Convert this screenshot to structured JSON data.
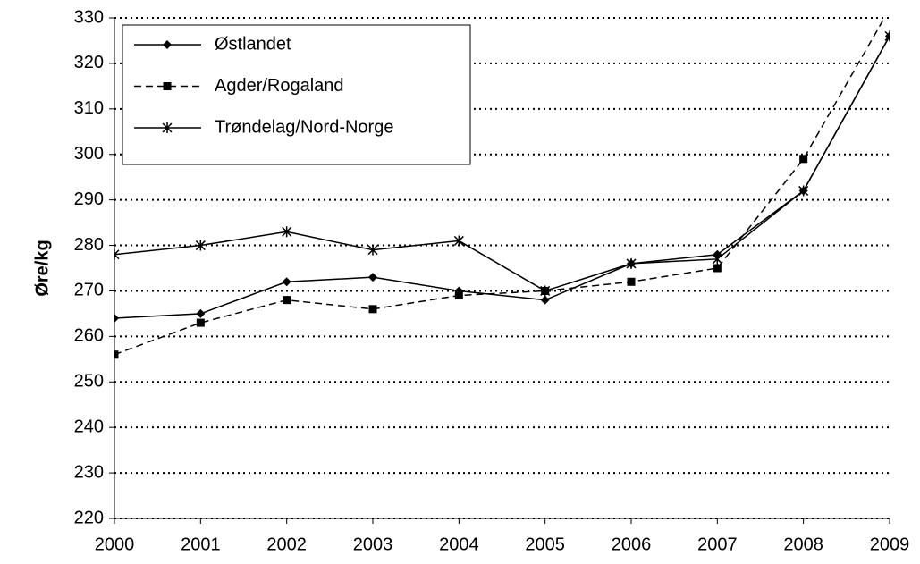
{
  "chart_data": {
    "type": "line",
    "y_label": "Øre/kg",
    "categories": [
      "2000",
      "2001",
      "2002",
      "2003",
      "2004",
      "2005",
      "2006",
      "2007",
      "2008",
      "2009"
    ],
    "series": [
      {
        "name": "Østlandet",
        "color": "#000000",
        "marker": "diamond",
        "dashed": false,
        "values": [
          264,
          265,
          272,
          273,
          270,
          268,
          276,
          278,
          292,
          326
        ]
      },
      {
        "name": "Agder/Rogaland",
        "color": "#000000",
        "marker": "square",
        "dashed": true,
        "values": [
          256,
          263,
          268,
          266,
          269,
          270,
          272,
          275,
          299,
          332
        ]
      },
      {
        "name": "Trøndelag/Nord-Norge",
        "color": "#000000",
        "marker": "star",
        "dashed": false,
        "values": [
          278,
          280,
          283,
          279,
          281,
          270,
          276,
          277,
          292,
          326
        ]
      }
    ],
    "ylim": [
      220,
      330
    ],
    "yticks": [
      220,
      230,
      240,
      250,
      260,
      270,
      280,
      290,
      300,
      310,
      320,
      330
    ],
    "grid": true,
    "legend": "upper left"
  }
}
